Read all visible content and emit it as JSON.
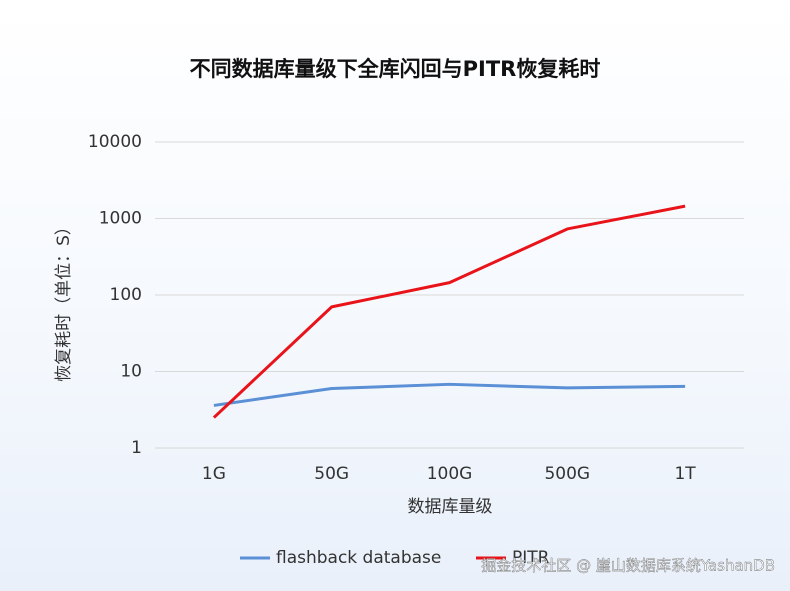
{
  "chart_data": {
    "type": "line",
    "title": "不同数据库量级下全库闪回与PITR恢复耗时",
    "xlabel": "数据库量级",
    "ylabel": "恢复耗时（单位：S）",
    "categories": [
      "1G",
      "50G",
      "100G",
      "500G",
      "1T"
    ],
    "series": [
      {
        "name": "flashback database",
        "color": "#5b8fd6",
        "values": [
          3.6,
          6,
          6.8,
          6.1,
          6.4
        ]
      },
      {
        "name": "PITR",
        "color": "#e8141a",
        "values": [
          2.5,
          70,
          145,
          730,
          1450
        ]
      }
    ],
    "ylim": [
      1,
      10000
    ],
    "yticks": [
      1,
      10,
      100,
      1000,
      10000
    ],
    "yscale": "log",
    "grid": true,
    "legend": "bottom",
    "watermark": "掘金技术社区 @ 崖山数据库系统YashanDB"
  }
}
